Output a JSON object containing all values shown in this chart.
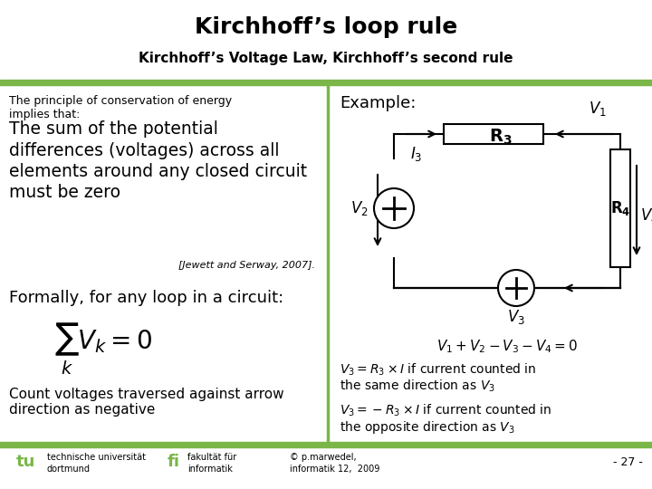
{
  "title": "Kirchhoff’s loop rule",
  "subtitle": "Kirchhoff’s Voltage Law, Kirchhoff’s second rule",
  "bg_color": "#ffffff",
  "bar_color": "#7ab648",
  "title_color": "#000000",
  "subtitle_color": "#000000",
  "left_text_small": "The principle of conservation of energy\nimplies that:",
  "left_text_large": "The sum of the potential\ndifferences (voltages) across all\nelements around any closed circuit\nmust be zero",
  "citation": "[Jewett and Serway, 2007].",
  "formally_text": "Formally, for any loop in a circuit:",
  "count_text": "Count voltages traversed against arrow\ndirection as negative",
  "example_label": "Example:",
  "equation_label": "$V_1+V_2-V_3-V_4=0$",
  "v3r3_text1_math": "$V_3=R_3\\times I$",
  "v3r3_text1_rest": " if current counted in\nthe same direction as $V_3$",
  "v3r3_text2_math": "$V_3=-R_3\\times I$",
  "v3r3_text2_rest": " if current counted in\nthe opposite direction as $V_3$",
  "footer_left1": "technische universität",
  "footer_left2": "dortmund",
  "footer_mid1": "fakultät für",
  "footer_mid2": "informatik",
  "footer_right1": "© p.marwedel,",
  "footer_right2": "informatik 12,  2009",
  "footer_page": "- 27 -",
  "wire_color": "#000000",
  "lw": 1.5
}
